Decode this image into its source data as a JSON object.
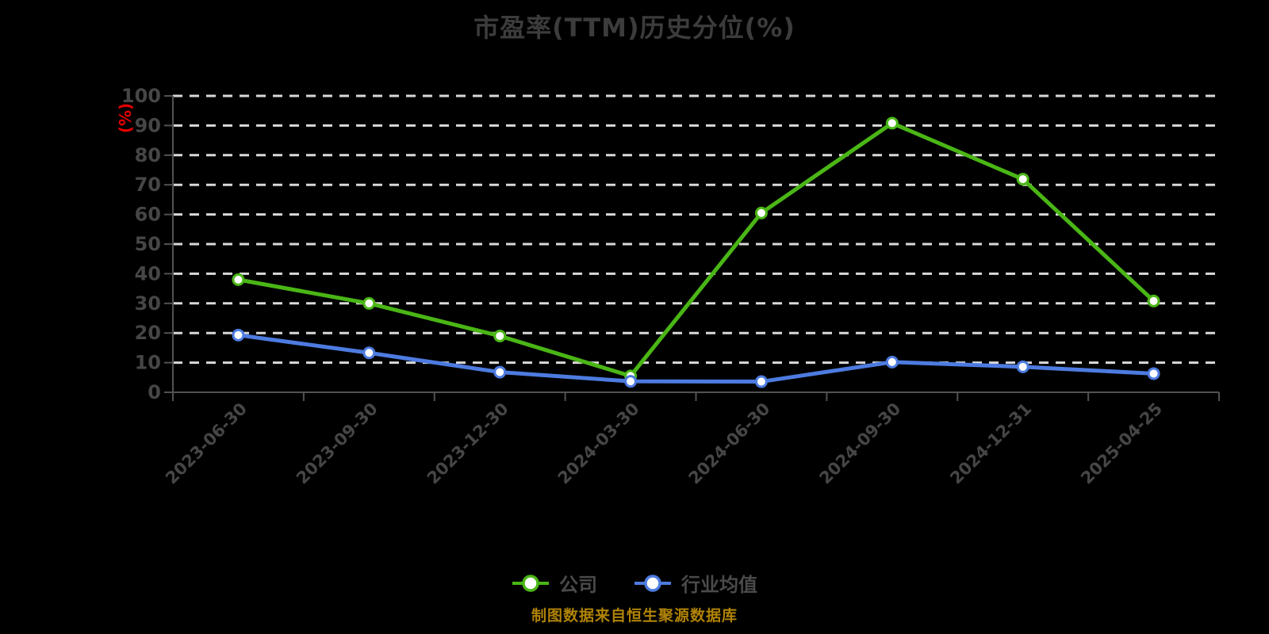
{
  "page": {
    "background": "#000000"
  },
  "title": {
    "text": "市盈率(TTM)历史分位(%)",
    "color": "#3c3c3c"
  },
  "y_axis": {
    "unit_label": "(%)",
    "unit_label_color": "#e60000",
    "tick_labels": [
      "0",
      "10",
      "20",
      "30",
      "40",
      "50",
      "60",
      "70",
      "80",
      "90",
      "100"
    ]
  },
  "x_axis": {
    "labels": [
      "2023-06-30",
      "2023-09-30",
      "2023-12-30",
      "2024-03-30",
      "2024-06-30",
      "2024-09-30",
      "2024-12-31",
      "2025-04-25"
    ]
  },
  "legend": {
    "items": [
      {
        "key": "company",
        "label": "公司",
        "color": "#4ab616"
      },
      {
        "key": "industry-average",
        "label": "行业均值",
        "color": "#4d7be0"
      }
    ]
  },
  "footer": {
    "caption": "制图数据来自恒生聚源数据库",
    "color": "#b08306"
  },
  "chart_data": {
    "type": "line",
    "title": "市盈率(TTM)历史分位(%)",
    "categories": [
      "2023-06-30",
      "2023-09-30",
      "2023-12-30",
      "2024-03-30",
      "2024-06-30",
      "2024-09-30",
      "2024-12-31",
      "2025-04-25"
    ],
    "series": [
      {
        "key": "company",
        "name": "公司",
        "color": "#4ab616",
        "values": [
          38,
          30,
          19,
          5.5,
          60.5,
          90.8,
          71.9,
          30.8
        ]
      },
      {
        "key": "industry-average",
        "name": "行业均值",
        "color": "#4d7be0",
        "values": [
          19.3,
          13.3,
          6.8,
          3.7,
          3.6,
          10.2,
          8.6,
          6.3
        ]
      }
    ],
    "xlabel": "",
    "ylabel": "(%)",
    "ylim": [
      0,
      100
    ],
    "y_tick_step": 10,
    "grid": true,
    "grid_line_style": "dashed",
    "legend_position": "bottom",
    "x_label_rotation_deg": 45,
    "marker": "circle-white-fill"
  },
  "style": {
    "grid_color": "#d9d9d9",
    "axis_color": "#525252",
    "tick_label_color": "#464646",
    "legend_text_color": "#4a4a4a",
    "marker_fill": "#ffffff"
  }
}
